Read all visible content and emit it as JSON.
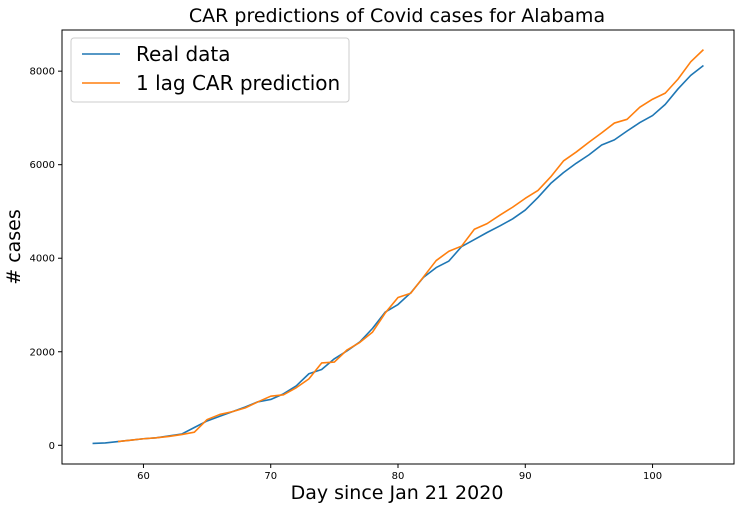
{
  "chart_data": {
    "type": "line",
    "title": "CAR predictions of Covid cases for Alabama",
    "xlabel": "Day since Jan 21 2020",
    "ylabel": "# cases",
    "xlim": [
      53.6,
      106.4
    ],
    "ylim": [
      -400,
      8880
    ],
    "xticks": [
      60,
      70,
      80,
      90,
      100
    ],
    "yticks": [
      0,
      2000,
      4000,
      6000,
      8000
    ],
    "grid": false,
    "legend_position": "top-left",
    "series": [
      {
        "name": "Real data",
        "color": "#1f77b4",
        "x": [
          56,
          57,
          58,
          59,
          60,
          61,
          62,
          63,
          64,
          65,
          66,
          67,
          68,
          69,
          70,
          71,
          72,
          73,
          74,
          75,
          76,
          77,
          78,
          79,
          80,
          81,
          82,
          83,
          84,
          85,
          86,
          87,
          88,
          89,
          90,
          91,
          92,
          93,
          94,
          95,
          96,
          97,
          98,
          99,
          100,
          101,
          102,
          103,
          104
        ],
        "y": [
          40,
          50,
          80,
          110,
          140,
          160,
          200,
          240,
          380,
          520,
          620,
          720,
          820,
          930,
          980,
          1100,
          1270,
          1530,
          1620,
          1850,
          2020,
          2210,
          2500,
          2850,
          3010,
          3260,
          3590,
          3800,
          3940,
          4250,
          4400,
          4550,
          4690,
          4840,
          5030,
          5300,
          5600,
          5830,
          6030,
          6210,
          6420,
          6530,
          6720,
          6900,
          7050,
          7290,
          7620,
          7910,
          8120
        ]
      },
      {
        "name": "1 lag CAR prediction",
        "color": "#ff7f0e",
        "x": [
          58,
          59,
          60,
          61,
          62,
          63,
          64,
          65,
          66,
          67,
          68,
          69,
          70,
          71,
          72,
          73,
          74,
          75,
          76,
          77,
          78,
          79,
          80,
          81,
          82,
          83,
          84,
          85,
          86,
          87,
          88,
          89,
          90,
          91,
          92,
          93,
          94,
          95,
          96,
          97,
          98,
          99,
          100,
          101,
          102,
          103,
          104
        ],
        "y": [
          80,
          110,
          140,
          160,
          190,
          230,
          280,
          550,
          660,
          720,
          800,
          930,
          1050,
          1080,
          1230,
          1420,
          1760,
          1780,
          2040,
          2200,
          2420,
          2830,
          3160,
          3250,
          3600,
          3950,
          4150,
          4260,
          4620,
          4740,
          4920,
          5090,
          5280,
          5450,
          5740,
          6080,
          6270,
          6480,
          6680,
          6890,
          6970,
          7230,
          7400,
          7530,
          7830,
          8200,
          8460
        ]
      }
    ]
  }
}
